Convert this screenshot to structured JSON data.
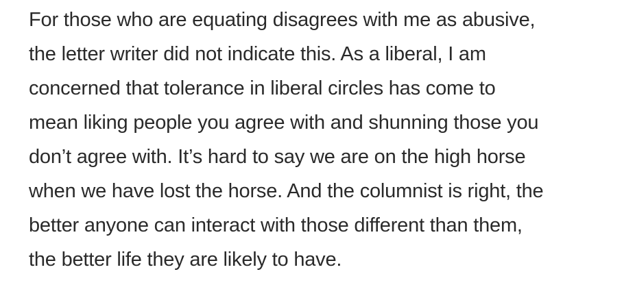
{
  "comment": {
    "lines": [
      "For those who are equating disagrees with me as abusive,",
      "the letter writer did not indicate this. As a liberal, I am",
      "concerned that tolerance in liberal circles has come to",
      "mean liking people you agree with and shunning those you",
      "don’t agree with. It’s hard to say we are on the high horse",
      "when we have lost the horse. And the columnist is right, the",
      "better anyone can interact with those different than them,",
      "the better life they are likely to have."
    ]
  }
}
